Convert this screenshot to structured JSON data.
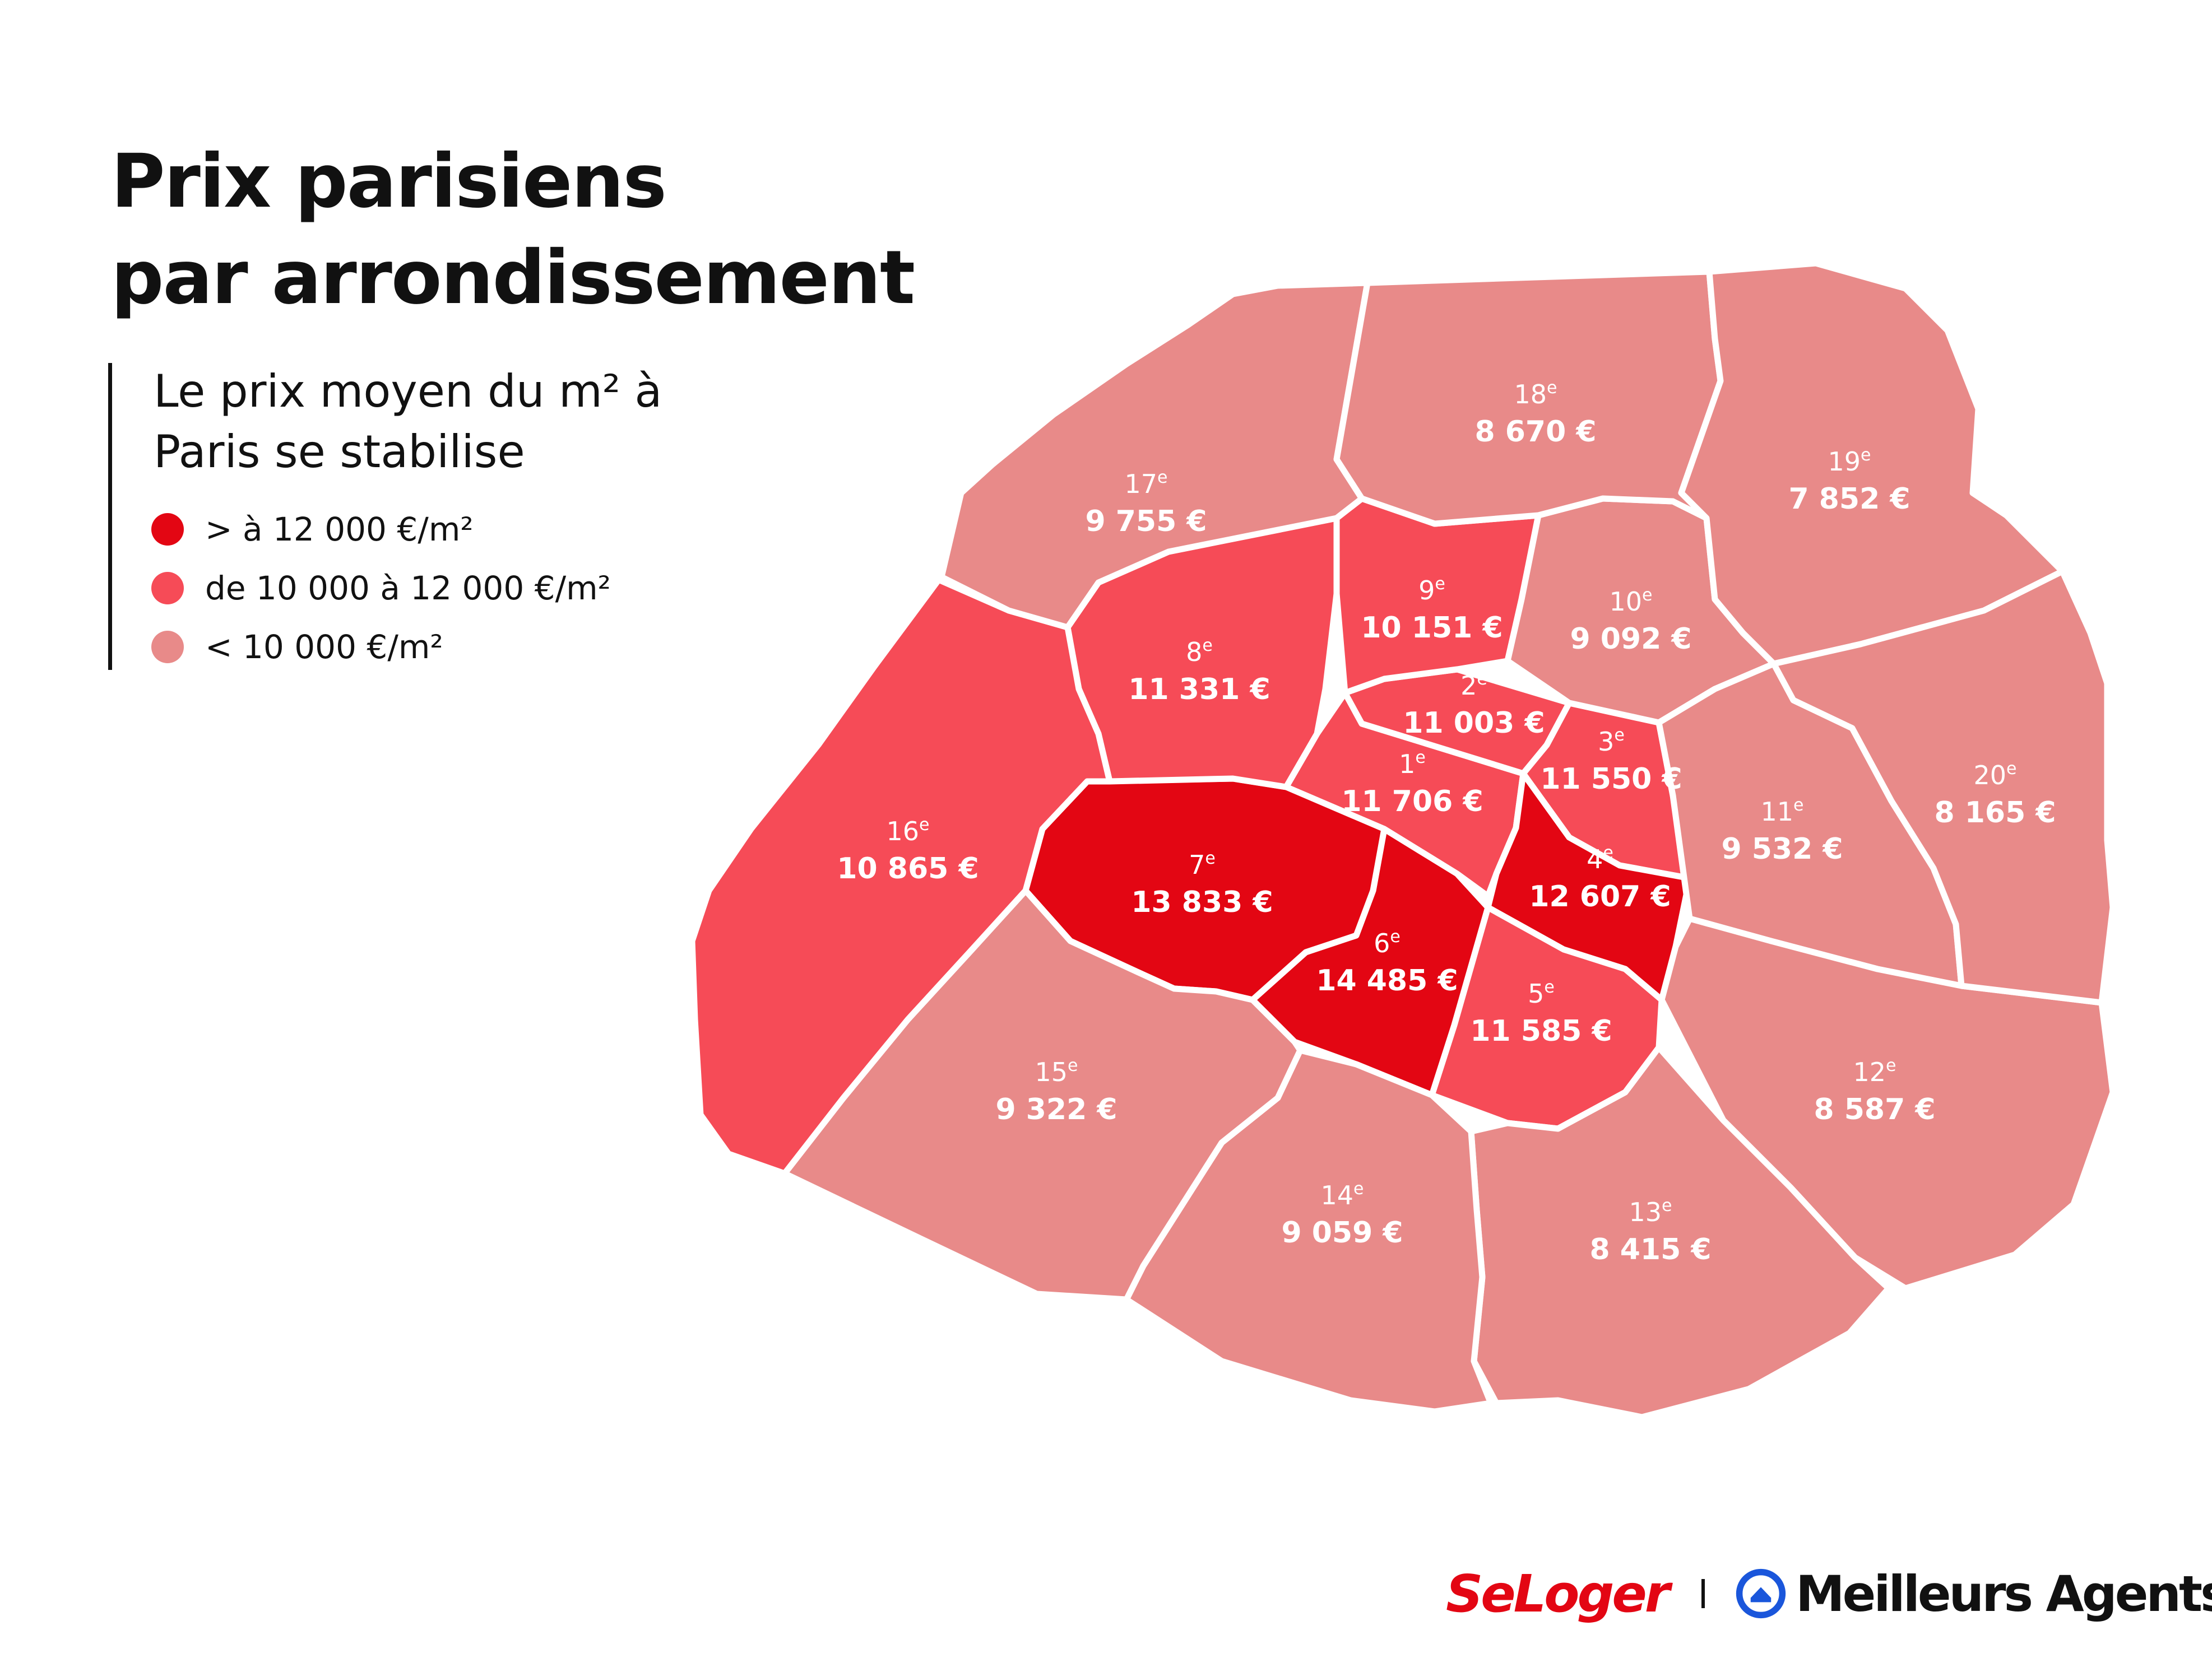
{
  "title": {
    "line1": "Prix parisiens",
    "line2": "par arrondissement"
  },
  "subtitle": {
    "line1": "Le prix moyen du m² à",
    "line2": "Paris se stabilise"
  },
  "legend": [
    {
      "label": "> à 12 000 €/m²",
      "color": "#e30613"
    },
    {
      "label": "de 10 000 à 12 000 €/m²",
      "color": "#f64b57"
    },
    {
      "label": "< 10 000 €/m²",
      "color": "#e88a89"
    }
  ],
  "arrondissements": [
    {
      "id": "1",
      "num": "1",
      "sup": "e",
      "price": "11 706 €",
      "price_per_m2": 11706
    },
    {
      "id": "2",
      "num": "2",
      "sup": "e",
      "price": "11 003 €",
      "price_per_m2": 11003
    },
    {
      "id": "3",
      "num": "3",
      "sup": "e",
      "price": "11 550 €",
      "price_per_m2": 11550
    },
    {
      "id": "4",
      "num": "4",
      "sup": "e",
      "price": "12 607 €",
      "price_per_m2": 12607
    },
    {
      "id": "5",
      "num": "5",
      "sup": "e",
      "price": "11 585 €",
      "price_per_m2": 11585
    },
    {
      "id": "6",
      "num": "6",
      "sup": "e",
      "price": "14 485 €",
      "price_per_m2": 14485
    },
    {
      "id": "7",
      "num": "7",
      "sup": "e",
      "price": "13 833 €",
      "price_per_m2": 13833
    },
    {
      "id": "8",
      "num": "8",
      "sup": "e",
      "price": "11 331 €",
      "price_per_m2": 11331
    },
    {
      "id": "9",
      "num": "9",
      "sup": "e",
      "price": "10 151 €",
      "price_per_m2": 10151
    },
    {
      "id": "10",
      "num": "10",
      "sup": "e",
      "price": "9 092 €",
      "price_per_m2": 9092
    },
    {
      "id": "11",
      "num": "11",
      "sup": "e",
      "price": "9 532 €",
      "price_per_m2": 9532
    },
    {
      "id": "12",
      "num": "12",
      "sup": "e",
      "price": "8 587 €",
      "price_per_m2": 8587
    },
    {
      "id": "13",
      "num": "13",
      "sup": "e",
      "price": "8 415 €",
      "price_per_m2": 8415
    },
    {
      "id": "14",
      "num": "14",
      "sup": "e",
      "price": "9 059 €",
      "price_per_m2": 9059
    },
    {
      "id": "15",
      "num": "15",
      "sup": "e",
      "price": "9 322 €",
      "price_per_m2": 9322
    },
    {
      "id": "16",
      "num": "16",
      "sup": "e",
      "price": "10 865 €",
      "price_per_m2": 10865
    },
    {
      "id": "17",
      "num": "17",
      "sup": "e",
      "price": "9 755 €",
      "price_per_m2": 9755
    },
    {
      "id": "18",
      "num": "18",
      "sup": "e",
      "price": "8 670 €",
      "price_per_m2": 8670
    },
    {
      "id": "19",
      "num": "19",
      "sup": "e",
      "price": "7 852 €",
      "price_per_m2": 7852
    },
    {
      "id": "20",
      "num": "20",
      "sup": "e",
      "price": "8 165 €",
      "price_per_m2": 8165
    }
  ],
  "logos": {
    "seloger": "SeLoger",
    "meilleurs_agents": "Meilleurs Agents",
    "meilleurs_agents_icon": "house-icon"
  }
}
